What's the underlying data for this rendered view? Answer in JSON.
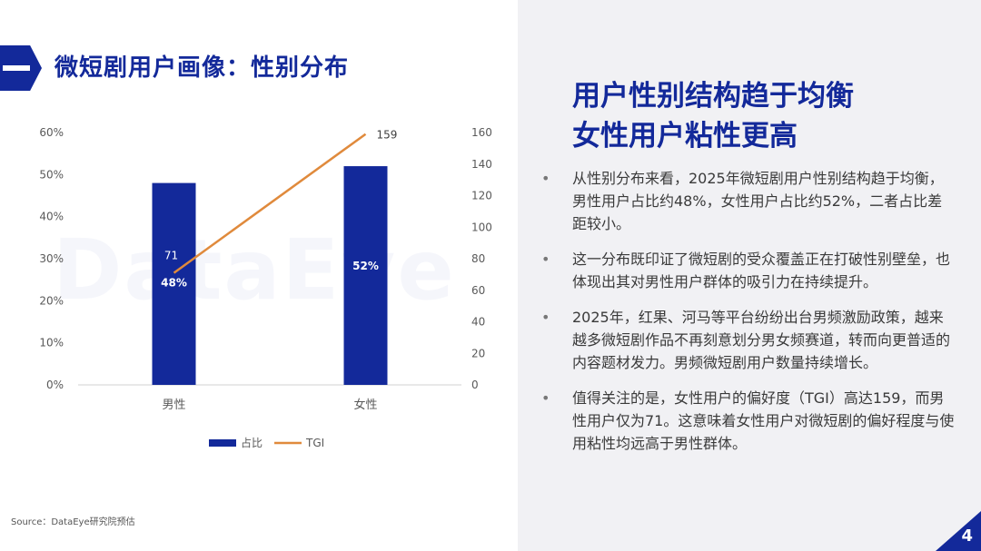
{
  "header": {
    "section_symbol": "一",
    "title": "微短剧用户画像：性别分布"
  },
  "chart_data": {
    "type": "bar",
    "categories": [
      "男性",
      "女性"
    ],
    "series": [
      {
        "name": "占比",
        "kind": "bar",
        "axis": "left",
        "values": [
          48,
          52
        ],
        "labels": [
          "48%",
          "52%"
        ],
        "color": "#13299a"
      },
      {
        "name": "TGI",
        "kind": "line",
        "axis": "right",
        "values": [
          71,
          159
        ],
        "labels": [
          "71",
          "159"
        ],
        "color": "#e08a3c"
      }
    ],
    "y_left": {
      "range": [
        0,
        60
      ],
      "ticks": [
        "0%",
        "10%",
        "20%",
        "30%",
        "40%",
        "50%",
        "60%"
      ]
    },
    "y_right": {
      "range": [
        0,
        160
      ],
      "ticks": [
        "0",
        "20",
        "40",
        "60",
        "80",
        "100",
        "120",
        "140",
        "160"
      ]
    },
    "grid": false,
    "legend": {
      "position": "bottom"
    }
  },
  "watermark": "DataEye",
  "source": "Source：DataEye研究院预估",
  "right_panel": {
    "title_lines": [
      "用户性别结构趋于均衡",
      "女性用户粘性更高"
    ],
    "bullet_symbol": "•",
    "bullets": [
      "从性别分布来看，2025年微短剧用户性别结构趋于均衡，男性用户占比约48%，女性用户占比约52%，二者占比差距较小。",
      "这一分布既印证了微短剧的受众覆盖正在打破性别壁垒，也体现出其对男性用户群体的吸引力在持续提升。",
      "2025年，红果、河马等平台纷纷出台男频激励政策，越来越多微短剧作品不再刻意划分男女频赛道，转而向更普适的内容题材发力。男频微短剧用户数量持续增长。",
      "值得关注的是，女性用户的偏好度（TGI）高达159，而男性用户仅为71。这意味着女性用户对微短剧的偏好程度与使用粘性均远高于男性群体。"
    ]
  },
  "page_number": "4",
  "colors": {
    "brand_blue": "#13299a",
    "line_orange": "#e08a3c",
    "panel_bg": "#f1f1f4"
  }
}
